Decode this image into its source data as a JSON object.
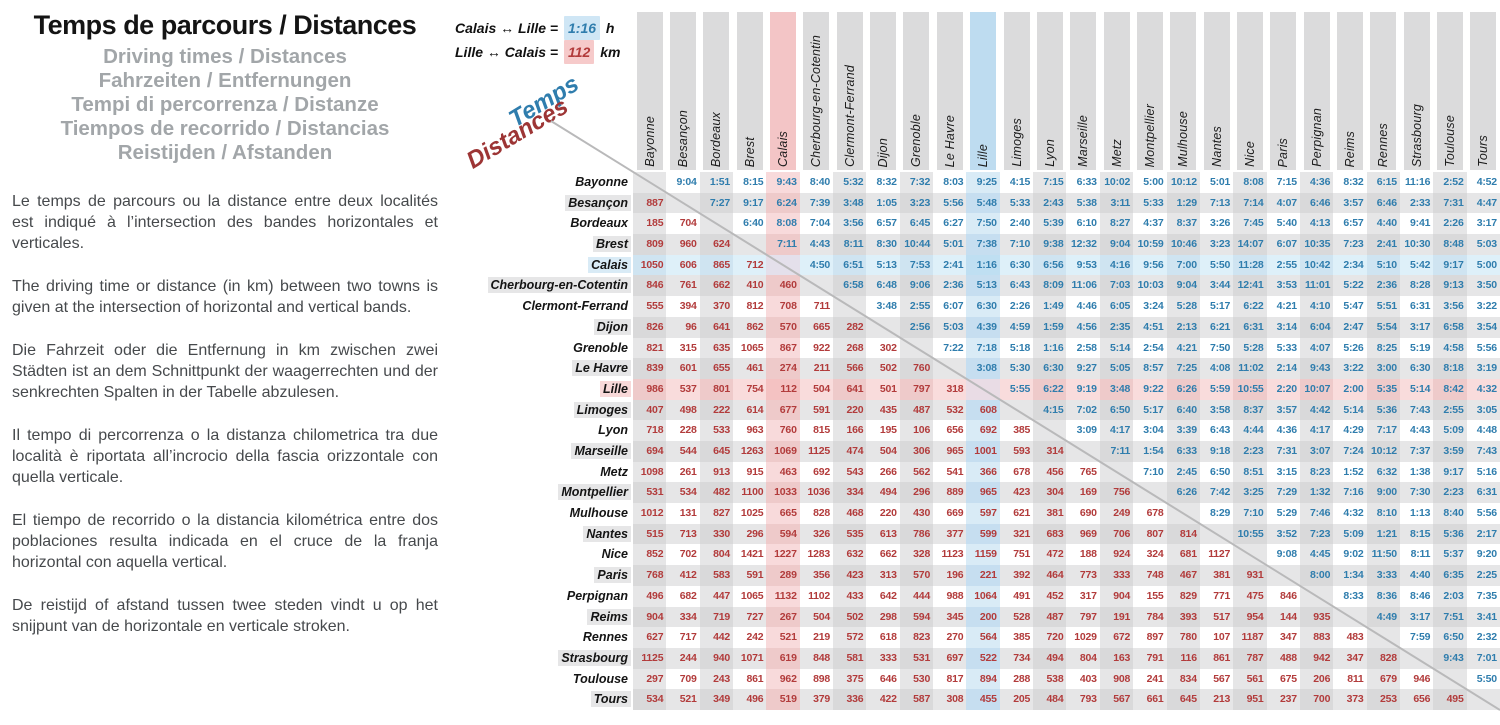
{
  "left_panel": {
    "title": "Temps de parcours / Distances",
    "subtitles": [
      "Driving times / Distances",
      "Fahrzeiten / Entfernungen",
      "Tempi di percorrenza / Distanze",
      "Tiempos de recorrido / Distancias",
      "Reistijden / Afstanden"
    ],
    "paragraphs": [
      "Le temps de parcours ou la distance entre deux localités est indiqué à l’intersection des bandes horizontales et verticales.",
      "The driving time or distance (in km) between two towns is given at the intersection of horizontal and vertical bands.",
      "Die Fahrzeit oder die Entfernung in km zwischen zwei Städten ist an dem Schnittpunkt der waagerrechten und der senkrechten Spalten in der Tabelle abzulesen.",
      "Il tempo di percorrenza o la distanza chilometrica tra due località è riportata all’incrocio della fascia orizzontale con quella verticale.",
      "El tiempo de recorrido o la distancia kilométrica entre dos poblaciones resulta indicada en el cruce de la franja horizontal con aquella vertical.",
      "De reistijd of afstand tussen twee steden vindt u op het snijpunt van de horizontale en verticale stroken."
    ]
  },
  "legend": {
    "time_example_prefix": "Calais ↔ Lille =",
    "time_example_value": "1:16",
    "time_example_unit": "h",
    "distance_example_prefix": "Lille ↔ Calais =",
    "distance_example_value": "112",
    "distance_example_unit": "km",
    "diagonal_time_label": "Temps",
    "diagonal_distance_label": "Distances"
  },
  "colors": {
    "time_text": "#2f7dad",
    "distance_text": "#b23b3b",
    "calais_column_pink": "#f3c5c6",
    "lille_column_blue": "#bedcf0",
    "stripe_gray": "#e6e6e7"
  },
  "chart_data": {
    "type": "table",
    "title": "Temps de parcours / Distances",
    "upper_triangle": "driving times (h:mm)",
    "lower_triangle": "distances (km)",
    "highlighted_time_cell": {
      "row": "Calais",
      "col": "Lille",
      "value": "1:16"
    },
    "highlighted_distance_cell": {
      "row": "Lille",
      "col": "Calais",
      "value": "112"
    },
    "cities": [
      "Bayonne",
      "Besançon",
      "Bordeaux",
      "Brest",
      "Calais",
      "Cherbourg-en-Cotentin",
      "Clermont-Ferrand",
      "Dijon",
      "Grenoble",
      "Le Havre",
      "Lille",
      "Limoges",
      "Lyon",
      "Marseille",
      "Metz",
      "Montpellier",
      "Mulhouse",
      "Nantes",
      "Nice",
      "Paris",
      "Perpignan",
      "Reims",
      "Rennes",
      "Strasbourg",
      "Toulouse",
      "Tours"
    ],
    "matrix": [
      [
        "",
        "9:04",
        "1:51",
        "8:15",
        "9:43",
        "8:40",
        "5:32",
        "8:32",
        "7:32",
        "8:03",
        "9:25",
        "4:15",
        "7:15",
        "6:33",
        "10:02",
        "5:00",
        "10:12",
        "5:01",
        "8:08",
        "7:15",
        "4:36",
        "8:32",
        "6:15",
        "11:16",
        "2:52",
        "4:52"
      ],
      [
        "887",
        "",
        "7:27",
        "9:17",
        "6:24",
        "7:39",
        "3:48",
        "1:05",
        "3:23",
        "5:56",
        "5:48",
        "5:33",
        "2:43",
        "5:38",
        "3:11",
        "5:33",
        "1:29",
        "7:13",
        "7:14",
        "4:07",
        "6:46",
        "3:57",
        "6:46",
        "2:33",
        "7:31",
        "4:47"
      ],
      [
        "185",
        "704",
        "",
        "6:40",
        "8:08",
        "7:04",
        "3:56",
        "6:57",
        "6:45",
        "6:27",
        "7:50",
        "2:40",
        "5:39",
        "6:10",
        "8:27",
        "4:37",
        "8:37",
        "3:26",
        "7:45",
        "5:40",
        "4:13",
        "6:57",
        "4:40",
        "9:41",
        "2:26",
        "3:17"
      ],
      [
        "809",
        "960",
        "624",
        "",
        "7:11",
        "4:43",
        "8:11",
        "8:30",
        "10:44",
        "5:01",
        "7:38",
        "7:10",
        "9:38",
        "12:32",
        "9:04",
        "10:59",
        "10:46",
        "3:23",
        "14:07",
        "6:07",
        "10:35",
        "7:23",
        "2:41",
        "10:30",
        "8:48",
        "5:03"
      ],
      [
        "1050",
        "606",
        "865",
        "712",
        "",
        "4:50",
        "6:51",
        "5:13",
        "7:53",
        "2:41",
        "1:16",
        "6:30",
        "6:56",
        "9:53",
        "4:16",
        "9:56",
        "7:00",
        "5:50",
        "11:28",
        "2:55",
        "10:42",
        "2:34",
        "5:10",
        "5:42",
        "9:17",
        "5:00"
      ],
      [
        "846",
        "761",
        "662",
        "410",
        "460",
        "",
        "6:58",
        "6:48",
        "9:06",
        "2:36",
        "5:13",
        "6:43",
        "8:09",
        "11:06",
        "7:03",
        "10:03",
        "9:04",
        "3:44",
        "12:41",
        "3:53",
        "11:01",
        "5:22",
        "2:36",
        "8:28",
        "9:13",
        "3:50"
      ],
      [
        "555",
        "394",
        "370",
        "812",
        "708",
        "711",
        "",
        "3:48",
        "2:55",
        "6:07",
        "6:30",
        "2:26",
        "1:49",
        "4:46",
        "6:05",
        "3:24",
        "5:28",
        "5:17",
        "6:22",
        "4:21",
        "4:10",
        "5:47",
        "5:51",
        "6:31",
        "3:56",
        "3:22"
      ],
      [
        "826",
        "96",
        "641",
        "862",
        "570",
        "665",
        "282",
        "",
        "2:56",
        "5:03",
        "4:39",
        "4:59",
        "1:59",
        "4:56",
        "2:35",
        "4:51",
        "2:13",
        "6:21",
        "6:31",
        "3:14",
        "6:04",
        "2:47",
        "5:54",
        "3:17",
        "6:58",
        "3:54"
      ],
      [
        "821",
        "315",
        "635",
        "1065",
        "867",
        "922",
        "268",
        "302",
        "",
        "7:22",
        "7:18",
        "5:18",
        "1:16",
        "2:58",
        "5:14",
        "2:54",
        "4:21",
        "7:50",
        "5:28",
        "5:33",
        "4:07",
        "5:26",
        "8:25",
        "5:19",
        "4:58",
        "5:56"
      ],
      [
        "839",
        "601",
        "655",
        "461",
        "274",
        "211",
        "566",
        "502",
        "760",
        "",
        "3:08",
        "5:30",
        "6:30",
        "9:27",
        "5:05",
        "8:57",
        "7:25",
        "4:08",
        "11:02",
        "2:14",
        "9:43",
        "3:22",
        "3:00",
        "6:30",
        "8:18",
        "3:19"
      ],
      [
        "986",
        "537",
        "801",
        "754",
        "112",
        "504",
        "641",
        "501",
        "797",
        "318",
        "",
        "5:55",
        "6:22",
        "9:19",
        "3:48",
        "9:22",
        "6:26",
        "5:59",
        "10:55",
        "2:20",
        "10:07",
        "2:00",
        "5:35",
        "5:14",
        "8:42",
        "4:32"
      ],
      [
        "407",
        "498",
        "222",
        "614",
        "677",
        "591",
        "220",
        "435",
        "487",
        "532",
        "608",
        "",
        "4:15",
        "7:02",
        "6:50",
        "5:17",
        "6:40",
        "3:58",
        "8:37",
        "3:57",
        "4:42",
        "5:14",
        "5:36",
        "7:43",
        "2:55",
        "3:05"
      ],
      [
        "718",
        "228",
        "533",
        "963",
        "760",
        "815",
        "166",
        "195",
        "106",
        "656",
        "692",
        "385",
        "",
        "3:09",
        "4:17",
        "3:04",
        "3:39",
        "6:43",
        "4:44",
        "4:36",
        "4:17",
        "4:29",
        "7:17",
        "4:43",
        "5:09",
        "4:48"
      ],
      [
        "694",
        "544",
        "645",
        "1263",
        "1069",
        "1125",
        "474",
        "504",
        "306",
        "965",
        "1001",
        "593",
        "314",
        "",
        "7:11",
        "1:54",
        "6:33",
        "9:18",
        "2:23",
        "7:31",
        "3:07",
        "7:24",
        "10:12",
        "7:37",
        "3:59",
        "7:43"
      ],
      [
        "1098",
        "261",
        "913",
        "915",
        "463",
        "692",
        "543",
        "266",
        "562",
        "541",
        "366",
        "678",
        "456",
        "765",
        "",
        "7:10",
        "2:45",
        "6:50",
        "8:51",
        "3:15",
        "8:23",
        "1:52",
        "6:32",
        "1:38",
        "9:17",
        "5:16"
      ],
      [
        "531",
        "534",
        "482",
        "1100",
        "1033",
        "1036",
        "334",
        "494",
        "296",
        "889",
        "965",
        "423",
        "304",
        "169",
        "756",
        "",
        "6:26",
        "7:42",
        "3:25",
        "7:29",
        "1:32",
        "7:16",
        "9:00",
        "7:30",
        "2:23",
        "6:31"
      ],
      [
        "1012",
        "131",
        "827",
        "1025",
        "665",
        "828",
        "468",
        "220",
        "430",
        "669",
        "597",
        "621",
        "381",
        "690",
        "249",
        "678",
        "",
        "8:29",
        "7:10",
        "5:29",
        "7:46",
        "4:32",
        "8:10",
        "1:13",
        "8:40",
        "5:56"
      ],
      [
        "515",
        "713",
        "330",
        "296",
        "594",
        "326",
        "535",
        "613",
        "786",
        "377",
        "599",
        "321",
        "683",
        "969",
        "706",
        "807",
        "814",
        "",
        "10:55",
        "3:52",
        "7:23",
        "5:09",
        "1:21",
        "8:15",
        "5:36",
        "2:17"
      ],
      [
        "852",
        "702",
        "804",
        "1421",
        "1227",
        "1283",
        "632",
        "662",
        "328",
        "1123",
        "1159",
        "751",
        "472",
        "188",
        "924",
        "324",
        "681",
        "1127",
        "",
        "9:08",
        "4:45",
        "9:02",
        "11:50",
        "8:11",
        "5:37",
        "9:20"
      ],
      [
        "768",
        "412",
        "583",
        "591",
        "289",
        "356",
        "423",
        "313",
        "570",
        "196",
        "221",
        "392",
        "464",
        "773",
        "333",
        "748",
        "467",
        "381",
        "931",
        "",
        "8:00",
        "1:34",
        "3:33",
        "4:40",
        "6:35",
        "2:25"
      ],
      [
        "496",
        "682",
        "447",
        "1065",
        "1132",
        "1102",
        "433",
        "642",
        "444",
        "988",
        "1064",
        "491",
        "452",
        "317",
        "904",
        "155",
        "829",
        "771",
        "475",
        "846",
        "",
        "8:33",
        "8:36",
        "8:46",
        "2:03",
        "7:35"
      ],
      [
        "904",
        "334",
        "719",
        "727",
        "267",
        "504",
        "502",
        "298",
        "594",
        "345",
        "200",
        "528",
        "487",
        "797",
        "191",
        "784",
        "393",
        "517",
        "954",
        "144",
        "935",
        "",
        "4:49",
        "3:17",
        "7:51",
        "3:41"
      ],
      [
        "627",
        "717",
        "442",
        "242",
        "521",
        "219",
        "572",
        "618",
        "823",
        "270",
        "564",
        "385",
        "720",
        "1029",
        "672",
        "897",
        "780",
        "107",
        "1187",
        "347",
        "883",
        "483",
        "",
        "7:59",
        "6:50",
        "2:32"
      ],
      [
        "1125",
        "244",
        "940",
        "1071",
        "619",
        "848",
        "581",
        "333",
        "531",
        "697",
        "522",
        "734",
        "494",
        "804",
        "163",
        "791",
        "116",
        "861",
        "787",
        "488",
        "942",
        "347",
        "828",
        "",
        "9:43",
        "7:01"
      ],
      [
        "297",
        "709",
        "243",
        "861",
        "962",
        "898",
        "375",
        "646",
        "530",
        "817",
        "894",
        "288",
        "538",
        "403",
        "908",
        "241",
        "834",
        "567",
        "561",
        "675",
        "206",
        "811",
        "679",
        "946",
        "",
        "5:50"
      ],
      [
        "534",
        "521",
        "349",
        "496",
        "519",
        "379",
        "336",
        "422",
        "587",
        "308",
        "455",
        "205",
        "484",
        "793",
        "567",
        "661",
        "645",
        "213",
        "951",
        "237",
        "700",
        "373",
        "253",
        "656",
        "495",
        ""
      ]
    ]
  }
}
